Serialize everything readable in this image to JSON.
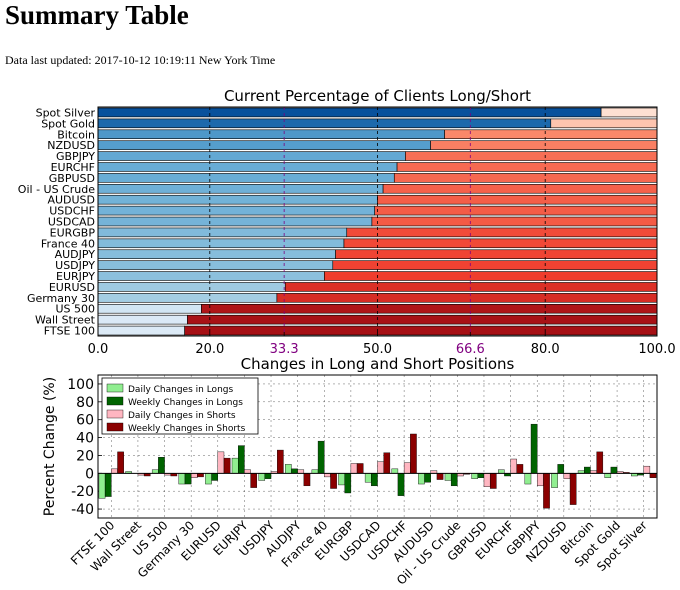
{
  "page": {
    "title": "Summary Table",
    "updated_label": "Data last updated:",
    "updated_value": "2017-10-12 10:19:11 New York Time"
  },
  "chart_data": [
    {
      "type": "bar",
      "orientation": "horizontal",
      "stacked": true,
      "title": "Current Percentage of Clients Long/Short",
      "xlim": [
        0,
        100
      ],
      "xticks": [
        "0.0",
        "20.0",
        "33.3",
        "50.0",
        "66.6",
        "80.0",
        "100.0"
      ],
      "xtick_values": [
        0,
        20,
        33.3,
        50,
        66.6,
        80,
        100
      ],
      "highlight_ticks": [
        33.3,
        66.6
      ],
      "highlight_color": "#800080",
      "grid": true,
      "categories": [
        "Spot Silver",
        "Spot Gold",
        "Bitcoin",
        "NZDUSD",
        "GBPJPY",
        "EURCHF",
        "GBPUSD",
        "Oil - US Crude",
        "AUDUSD",
        "USDCHF",
        "USDCAD",
        "EURGBP",
        "France 40",
        "AUDJPY",
        "USDJPY",
        "EURJPY",
        "EURUSD",
        "Germany 30",
        "US 500",
        "Wall Street",
        "FTSE 100"
      ],
      "series": [
        {
          "values": [
            90,
            81,
            62,
            59.5,
            55,
            53.5,
            53,
            51,
            50,
            49.5,
            49,
            44.5,
            44,
            42.5,
            42,
            40.5,
            33.5,
            32,
            18.5,
            16,
            15.5
          ]
        },
        {
          "values": [
            10,
            19,
            38,
            40.5,
            45,
            46.5,
            47,
            49,
            50,
            50.5,
            51,
            55.5,
            56,
            57.5,
            58,
            59.5,
            66.5,
            68,
            81.5,
            84,
            84.5
          ]
        }
      ]
    },
    {
      "type": "bar",
      "title": "Changes in Long and Short Positions",
      "ylabel": "Percent Change (%)",
      "ylim": [
        -50,
        110
      ],
      "yticks": [
        100,
        80,
        60,
        40,
        20,
        0,
        -20,
        -40
      ],
      "grid": true,
      "legend_position": "top-left",
      "categories": [
        "FTSE 100",
        "Wall Street",
        "US 500",
        "Germany 30",
        "EURUSD",
        "EURJPY",
        "USDJPY",
        "AUDJPY",
        "France 40",
        "EURGBP",
        "USDCAD",
        "USDCHF",
        "AUDUSD",
        "Oil - US Crude",
        "GBPUSD",
        "EURCHF",
        "GBPJPY",
        "NZDUSD",
        "Bitcoin",
        "Spot Gold",
        "Spot Silver"
      ],
      "series": [
        {
          "name": "Daily Changes in Longs",
          "color": "#90ee90",
          "values": [
            -28,
            2,
            4,
            -12,
            -12,
            17,
            -8,
            10,
            4,
            -13,
            -10,
            5,
            -12,
            -8,
            -6,
            4,
            -12,
            -16,
            3,
            -5,
            -3
          ]
        },
        {
          "name": "Weekly Changes in Longs",
          "color": "#006400",
          "values": [
            -26,
            0,
            18,
            -12,
            -8,
            31,
            -6,
            5,
            36,
            -22,
            -14,
            -25,
            -10,
            -14,
            -5,
            -3,
            55,
            10,
            7,
            7,
            -2
          ]
        },
        {
          "name": "Daily Changes in Shorts",
          "color": "#ffb6c1",
          "values": [
            5,
            -2,
            -2,
            -5,
            24,
            4,
            2,
            4,
            -4,
            11,
            13,
            12,
            3,
            -3,
            -15,
            16,
            -14,
            -6,
            3,
            2,
            8
          ]
        },
        {
          "name": "Weekly Changes in Shorts",
          "color": "#8b0000",
          "values": [
            24,
            -3,
            -3,
            -4,
            17,
            -16,
            26,
            -14,
            -17,
            11,
            23,
            44,
            -7,
            -1,
            -17,
            10,
            -39,
            -35,
            24,
            1,
            -5
          ]
        }
      ]
    }
  ]
}
